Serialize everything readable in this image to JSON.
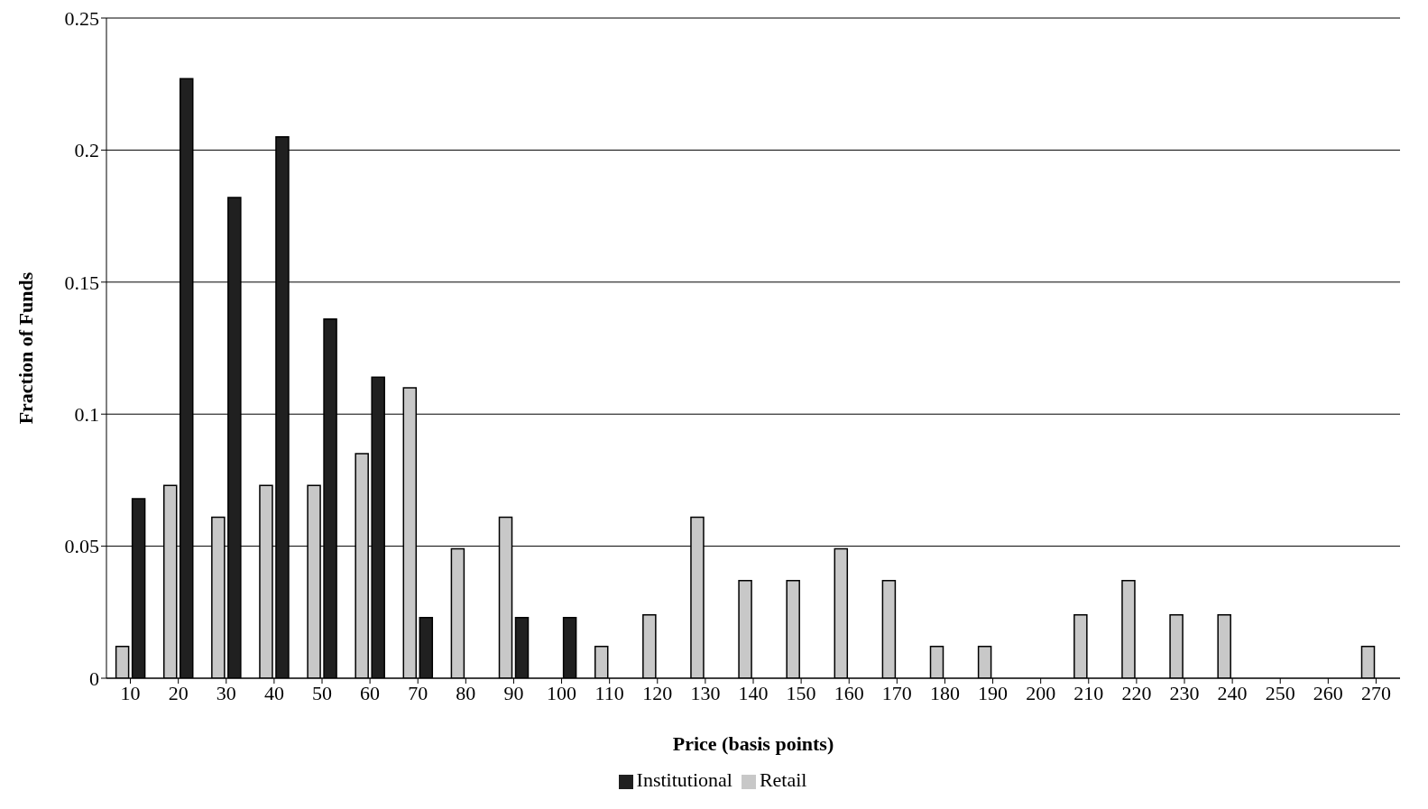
{
  "chart_data": {
    "type": "bar",
    "xlabel": "Price (basis points)",
    "ylabel": "Fraction of Funds",
    "categories": [
      "10",
      "20",
      "30",
      "40",
      "50",
      "60",
      "70",
      "80",
      "90",
      "100",
      "110",
      "120",
      "130",
      "140",
      "150",
      "160",
      "170",
      "180",
      "190",
      "200",
      "210",
      "220",
      "230",
      "240",
      "250",
      "260",
      "270"
    ],
    "series": [
      {
        "name": "Retail",
        "color": "#c8c8c8",
        "values": [
          0.012,
          0.073,
          0.061,
          0.073,
          0.073,
          0.085,
          0.11,
          0.049,
          0.061,
          0,
          0.012,
          0.024,
          0.061,
          0.037,
          0.037,
          0.049,
          0.037,
          0.012,
          0.012,
          0,
          0.024,
          0.037,
          0.024,
          0.024,
          0,
          0,
          0.012
        ]
      },
      {
        "name": "Institutional",
        "color": "#202020",
        "values": [
          0.068,
          0.227,
          0.182,
          0.205,
          0.136,
          0.114,
          0.023,
          0,
          0.023,
          0.023,
          0,
          0,
          0,
          0,
          0,
          0,
          0,
          0,
          0,
          0,
          0,
          0,
          0,
          0,
          0,
          0,
          0
        ]
      }
    ],
    "ylim": [
      0,
      0.25
    ],
    "yticks": [
      0,
      0.05,
      0.1,
      0.15,
      0.2,
      0.25
    ],
    "grid": "y",
    "legend": "bottom"
  }
}
